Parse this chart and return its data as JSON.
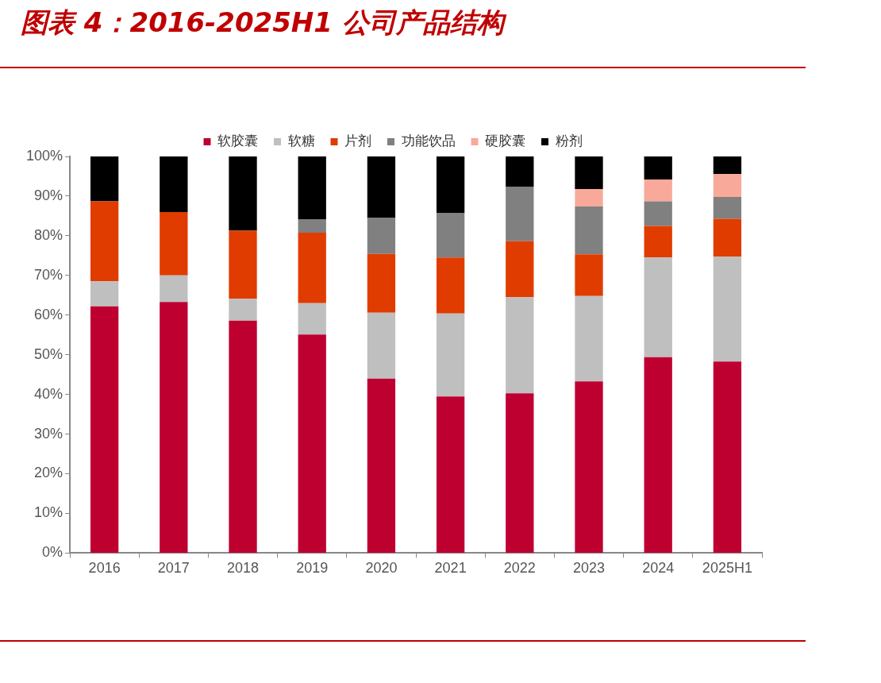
{
  "chart_data": {
    "type": "bar",
    "stacked": true,
    "title": "图表 4：2016-2025H1 公司产品结构",
    "categories": [
      "2016",
      "2017",
      "2018",
      "2019",
      "2020",
      "2021",
      "2022",
      "2023",
      "2024",
      "2025H1"
    ],
    "series": [
      {
        "name": "软胶囊",
        "color": "#be0030",
        "values": [
          62.2,
          63.3,
          58.6,
          55.1,
          44,
          39.5,
          40.3,
          43.3,
          49.4,
          48.3
        ]
      },
      {
        "name": "软糖",
        "color": "#bfbfbf",
        "values": [
          6.3,
          6.7,
          5.5,
          7.9,
          16.6,
          20.9,
          24.2,
          21.5,
          25.1,
          26.4
        ]
      },
      {
        "name": "片剂",
        "color": "#e03c00",
        "values": [
          20.2,
          16,
          17.2,
          17.8,
          14.8,
          14.1,
          14.1,
          10.5,
          8,
          9.6
        ]
      },
      {
        "name": "功能饮品",
        "color": "#808080",
        "values": [
          0,
          0,
          0,
          3.4,
          9.1,
          11.2,
          13.7,
          12.1,
          6.2,
          5.5
        ]
      },
      {
        "name": "硬胶囊",
        "color": "#f9a99a",
        "values": [
          0,
          0,
          0,
          0,
          0,
          0,
          0,
          4.4,
          5.5,
          5.8
        ]
      },
      {
        "name": "粉剂",
        "color": "#000000",
        "values": [
          11.3,
          14,
          18.7,
          15.8,
          15.5,
          14.3,
          7.7,
          8.2,
          5.8,
          4.4
        ]
      }
    ],
    "ylim": [
      0,
      100
    ],
    "yticks": [
      {
        "value": 0,
        "label": "0%"
      },
      {
        "value": 10,
        "label": "10%"
      },
      {
        "value": 20,
        "label": "20%"
      },
      {
        "value": 30,
        "label": "30%"
      },
      {
        "value": 40,
        "label": "40%"
      },
      {
        "value": 50,
        "label": "50%"
      },
      {
        "value": 60,
        "label": "60%"
      },
      {
        "value": 70,
        "label": "70%"
      },
      {
        "value": 80,
        "label": "80%"
      },
      {
        "value": 90,
        "label": "90%"
      },
      {
        "value": 100,
        "label": "100%"
      }
    ],
    "grid": false,
    "legend": "top"
  }
}
